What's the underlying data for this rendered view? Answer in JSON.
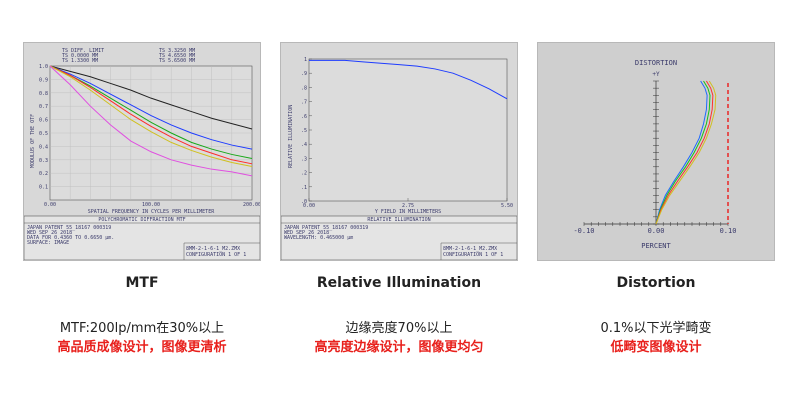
{
  "chart_data": [
    {
      "type": "line",
      "title": "POLYCHROMATIC DIFFRACTION MTF",
      "xlabel": "SPATIAL FREQUENCY IN CYCLES PER MILLIMETER",
      "ylabel": "MODULUS OF THE OTF",
      "xlim": [
        0,
        200
      ],
      "ylim": [
        0,
        1
      ],
      "x_ticks": [
        "0.00",
        "100.00",
        "200.00"
      ],
      "y_ticks": [
        "1.0",
        "0.9",
        "0.8",
        "0.7",
        "0.6",
        "0.5",
        "0.4",
        "0.3",
        "0.2",
        "0.1"
      ],
      "legend": [
        "TS DIFF. LIMIT",
        "TS 0.0000 MM",
        "TS 1.3300 MM",
        "TS 3.3250 MM",
        "TS 4.6550 MM",
        "TS 5.6500 MM"
      ],
      "x": [
        0,
        20,
        40,
        60,
        80,
        100,
        120,
        140,
        160,
        180,
        200
      ],
      "series": [
        {
          "color": "#222222",
          "values": [
            1.0,
            0.96,
            0.92,
            0.87,
            0.82,
            0.76,
            0.71,
            0.66,
            0.61,
            0.57,
            0.53
          ]
        },
        {
          "color": "#1e3cff",
          "values": [
            1.0,
            0.94,
            0.87,
            0.79,
            0.71,
            0.63,
            0.56,
            0.5,
            0.45,
            0.41,
            0.38
          ]
        },
        {
          "color": "#18a818",
          "values": [
            1.0,
            0.93,
            0.85,
            0.76,
            0.67,
            0.58,
            0.5,
            0.43,
            0.38,
            0.34,
            0.31
          ]
        },
        {
          "color": "#ff2a2a",
          "values": [
            1.0,
            0.93,
            0.84,
            0.74,
            0.64,
            0.55,
            0.47,
            0.4,
            0.35,
            0.3,
            0.27
          ]
        },
        {
          "color": "#d0c020",
          "values": [
            1.0,
            0.92,
            0.82,
            0.71,
            0.6,
            0.51,
            0.43,
            0.37,
            0.32,
            0.28,
            0.25
          ]
        },
        {
          "color": "#e050e0",
          "values": [
            1.0,
            0.86,
            0.7,
            0.56,
            0.44,
            0.36,
            0.3,
            0.26,
            0.23,
            0.21,
            0.18
          ]
        }
      ],
      "footer": {
        "lines": [
          "JAPAN   PATENT 55_18167  000319",
          "WED SEP 26 2018",
          "DATA FOR 0.4360 TO 0.6650 µm.",
          "SURFACE: IMAGE"
        ],
        "right": [
          "8MM-2-1-6-1_M2.ZMX",
          "CONFIGURATION 1 OF 1"
        ]
      }
    },
    {
      "type": "line",
      "title": "RELATIVE ILLUMINATION",
      "xlabel": "Y FIELD IN MILLIMETERS",
      "ylabel": "RELATIVE ILLUMINATION",
      "xlim": [
        0,
        5.5
      ],
      "ylim": [
        0,
        1
      ],
      "x_ticks": [
        "0.00",
        "2.75",
        "5.50"
      ],
      "y_ticks": [
        "1",
        ".9",
        ".8",
        ".7",
        ".6",
        ".5",
        ".4",
        ".3",
        ".2",
        ".1",
        ".0"
      ],
      "x": [
        0,
        0.5,
        1.0,
        1.5,
        2.0,
        2.5,
        3.0,
        3.5,
        4.0,
        4.5,
        5.0,
        5.5
      ],
      "series": [
        {
          "color": "#1e3cff",
          "values": [
            0.99,
            0.99,
            0.99,
            0.98,
            0.97,
            0.96,
            0.95,
            0.93,
            0.9,
            0.85,
            0.79,
            0.72
          ]
        }
      ],
      "footer": {
        "lines": [
          "JAPAN   PATENT 55_18167  000319",
          "WED SEP 26 2018",
          "WAVELENGTH: 0.465000 µm"
        ],
        "right": [
          "8MM-2-1-6-1_M2.ZMX",
          "CONFIGURATION 1 OF 1"
        ]
      }
    },
    {
      "type": "line",
      "title": "DISTORTION",
      "xlabel": "PERCENT",
      "ylabel": "+Y",
      "xlim": [
        -0.1,
        0.1
      ],
      "x_ticks": [
        "-0.10",
        "0.00",
        "0.10"
      ],
      "y": [
        0.0,
        0.1,
        0.2,
        0.3,
        0.4,
        0.5,
        0.6,
        0.7,
        0.8,
        0.9,
        0.95,
        1.0
      ],
      "series": [
        {
          "color": "#1e6aff",
          "x": [
            0.0,
            0.005,
            0.013,
            0.025,
            0.038,
            0.05,
            0.06,
            0.066,
            0.07,
            0.071,
            0.068,
            0.062
          ]
        },
        {
          "color": "#18c018",
          "x": [
            0.0,
            0.006,
            0.015,
            0.027,
            0.041,
            0.053,
            0.063,
            0.07,
            0.074,
            0.075,
            0.072,
            0.066
          ]
        },
        {
          "color": "#ff3030",
          "x": [
            0.0,
            0.007,
            0.017,
            0.03,
            0.044,
            0.057,
            0.067,
            0.074,
            0.078,
            0.079,
            0.076,
            0.07
          ]
        },
        {
          "color": "#d0c020",
          "x": [
            0.0,
            0.008,
            0.019,
            0.033,
            0.047,
            0.06,
            0.07,
            0.077,
            0.082,
            0.083,
            0.08,
            0.074
          ]
        },
        {
          "color": "#e83030",
          "dashed": true,
          "x": [
            0.1,
            0.1
          ]
        }
      ]
    }
  ],
  "captions": [
    {
      "title": "MTF",
      "line1": "MTF:200lp/mm在30%以上",
      "line2": "高品质成像设计，图像更清析"
    },
    {
      "title": "Relative Illumination",
      "line1": "边缘亮度70%以上",
      "line2": "高亮度边缘设计，图像更均匀"
    },
    {
      "title": "Distortion",
      "line1": "0.1%以下光学畸变",
      "line2": "低畸变图像设计"
    }
  ]
}
